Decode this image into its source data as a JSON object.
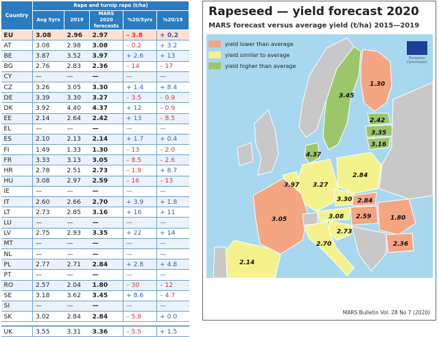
{
  "table": {
    "header_group": "Rape and turnip rape (t/ha)",
    "col_country": "Country",
    "col_avg": "Avg 5yrs",
    "col_2019": "2019",
    "col_mars": [
      "MARS",
      "2020",
      "forecasts"
    ],
    "col_pct5": "%20/5yrs",
    "col_pct19": "%20/19",
    "rows": [
      {
        "c": "EU",
        "avg": "3.08",
        "y19": "2.96",
        "f": "2.97",
        "p5": "– 3.8",
        "p19": "+ 0.2",
        "s5": "neg",
        "s19": "pos"
      },
      {
        "c": "AT",
        "avg": "3.08",
        "y19": "2.98",
        "f": "3.08",
        "p5": "– 0.2",
        "p19": "+ 3.2",
        "s5": "neg",
        "s19": "pos"
      },
      {
        "c": "BE",
        "avg": "3.87",
        "y19": "3.52",
        "f": "3.97",
        "p5": "+ 2.6",
        "p19": "+ 13",
        "s5": "pos",
        "s19": "pos"
      },
      {
        "c": "BG",
        "avg": "2.76",
        "y19": "2.83",
        "f": "2.36",
        "p5": "– 14",
        "p19": "– 17",
        "s5": "neg",
        "s19": "neg"
      },
      {
        "c": "CY",
        "avg": "—",
        "y19": "—",
        "f": "—",
        "p5": "—",
        "p19": "—",
        "s5": "pos",
        "s19": "pos"
      },
      {
        "c": "CZ",
        "avg": "3.26",
        "y19": "3.05",
        "f": "3.30",
        "p5": "+ 1.4",
        "p19": "+ 8.4",
        "s5": "pos",
        "s19": "pos"
      },
      {
        "c": "DE",
        "avg": "3.39",
        "y19": "3.30",
        "f": "3.27",
        "p5": "– 3.5",
        "p19": "– 0.9",
        "s5": "neg",
        "s19": "neg"
      },
      {
        "c": "DK",
        "avg": "3.92",
        "y19": "4.40",
        "f": "4.37",
        "p5": "+ 12",
        "p19": "– 0.9",
        "s5": "pos",
        "s19": "neg"
      },
      {
        "c": "EE",
        "avg": "2.14",
        "y19": "2.64",
        "f": "2.42",
        "p5": "+ 13",
        "p19": "– 8.5",
        "s5": "pos",
        "s19": "neg"
      },
      {
        "c": "EL",
        "avg": "—",
        "y19": "—",
        "f": "—",
        "p5": "—",
        "p19": "—",
        "s5": "pos",
        "s19": "pos"
      },
      {
        "c": "ES",
        "avg": "2.10",
        "y19": "2.13",
        "f": "2.14",
        "p5": "+ 1.7",
        "p19": "+ 0.4",
        "s5": "pos",
        "s19": "pos"
      },
      {
        "c": "FI",
        "avg": "1.49",
        "y19": "1.33",
        "f": "1.30",
        "p5": "– 13",
        "p19": "– 2.0",
        "s5": "neg",
        "s19": "neg"
      },
      {
        "c": "FR",
        "avg": "3.33",
        "y19": "3.13",
        "f": "3.05",
        "p5": "– 8.5",
        "p19": "– 2.6",
        "s5": "neg",
        "s19": "neg"
      },
      {
        "c": "HR",
        "avg": "2.78",
        "y19": "2.51",
        "f": "2.73",
        "p5": "– 1.9",
        "p19": "+ 8.7",
        "s5": "neg",
        "s19": "pos"
      },
      {
        "c": "HU",
        "avg": "3.08",
        "y19": "2.97",
        "f": "2.59",
        "p5": "– 16",
        "p19": "– 13",
        "s5": "neg",
        "s19": "neg"
      },
      {
        "c": "IE",
        "avg": "—",
        "y19": "—",
        "f": "—",
        "p5": "—",
        "p19": "—",
        "s5": "pos",
        "s19": "pos"
      },
      {
        "c": "IT",
        "avg": "2.60",
        "y19": "2.66",
        "f": "2.70",
        "p5": "+ 3.9",
        "p19": "+ 1.8",
        "s5": "pos",
        "s19": "pos"
      },
      {
        "c": "LT",
        "avg": "2.73",
        "y19": "2.85",
        "f": "3.16",
        "p5": "+ 16",
        "p19": "+ 11",
        "s5": "pos",
        "s19": "pos"
      },
      {
        "c": "LU",
        "avg": "—",
        "y19": "—",
        "f": "—",
        "p5": "—",
        "p19": "—",
        "s5": "pos",
        "s19": "pos"
      },
      {
        "c": "LV",
        "avg": "2.75",
        "y19": "2.93",
        "f": "3.35",
        "p5": "+ 22",
        "p19": "+ 14",
        "s5": "pos",
        "s19": "pos"
      },
      {
        "c": "MT",
        "avg": "—",
        "y19": "—",
        "f": "—",
        "p5": "—",
        "p19": "—",
        "s5": "pos",
        "s19": "pos"
      },
      {
        "c": "NL",
        "avg": "—",
        "y19": "—",
        "f": "—",
        "p5": "—",
        "p19": "—",
        "s5": "pos",
        "s19": "pos"
      },
      {
        "c": "PL",
        "avg": "2.77",
        "y19": "2.71",
        "f": "2.84",
        "p5": "+ 2.8",
        "p19": "+ 4.8",
        "s5": "pos",
        "s19": "pos"
      },
      {
        "c": "PT",
        "avg": "—",
        "y19": "—",
        "f": "—",
        "p5": "—",
        "p19": "—",
        "s5": "pos",
        "s19": "pos"
      },
      {
        "c": "RO",
        "avg": "2.57",
        "y19": "2.04",
        "f": "1.80",
        "p5": "– 30",
        "p19": "– 12",
        "s5": "neg",
        "s19": "neg"
      },
      {
        "c": "SE",
        "avg": "3.18",
        "y19": "3.62",
        "f": "3.45",
        "p5": "+ 8.6",
        "p19": "– 4.7",
        "s5": "pos",
        "s19": "neg"
      },
      {
        "c": "SI",
        "avg": "—",
        "y19": "—",
        "f": "—",
        "p5": "—",
        "p19": "—",
        "s5": "pos",
        "s19": "pos"
      },
      {
        "c": "SK",
        "avg": "3.02",
        "y19": "2.84",
        "f": "2.84",
        "p5": "– 5.8",
        "p19": "+ 0.0",
        "s5": "neg",
        "s19": "pos"
      }
    ],
    "uk": {
      "c": "UK",
      "avg": "3.55",
      "y19": "3.31",
      "f": "3.36",
      "p5": "– 5.5",
      "p19": "+ 1.5",
      "s5": "neg",
      "s19": "pos"
    }
  },
  "map": {
    "title": "Rapeseed — yield forecast 2020",
    "subtitle": "MARS forecast versus average yield (t/ha) 2015—2019",
    "legend": [
      {
        "label": "yield lower than average",
        "color": "#f4a582"
      },
      {
        "label": "yield similar to average",
        "color": "#f4f28c"
      },
      {
        "label": "yield higher than average",
        "color": "#9cc66a"
      }
    ],
    "footer": "MARS Bulletin Vol. 28 No 7 (2020)",
    "logo_text": "European Commission",
    "colors": {
      "sea": "#a8d8f0",
      "lower": "#f4a582",
      "similar": "#f4f28c",
      "higher": "#9cc66a",
      "nodata": "#c8c8c8"
    },
    "labels": {
      "se": "3.45",
      "fi": "1.30",
      "ee": "2.42",
      "lv": "3.35",
      "lt": "3.16",
      "dk": "4.37",
      "pl": "2.84",
      "de": "3.27",
      "be": "3.97",
      "cz": "3.30",
      "sk": "2.84",
      "at": "3.08",
      "hu": "2.59",
      "ro": "1.80",
      "bg": "2.36",
      "fr": "3.05",
      "hr": "2.73",
      "it": "2.70",
      "es": "2.14"
    }
  }
}
